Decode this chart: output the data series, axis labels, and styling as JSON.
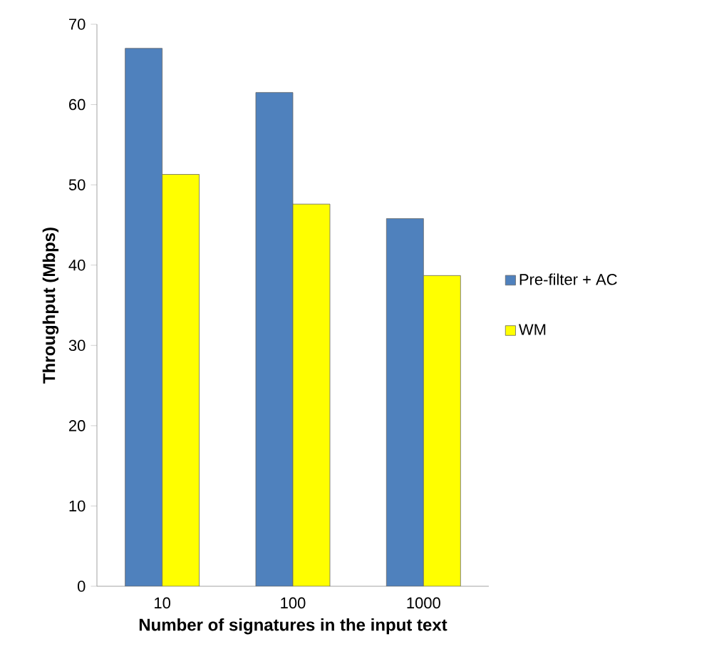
{
  "chart_data": {
    "type": "bar",
    "xlabel": "Number of signatures in the input text",
    "ylabel": "Throughput (Mbps)",
    "categories": [
      "10",
      "100",
      "1000"
    ],
    "series": [
      {
        "name": "Pre-filter + AC",
        "color": "#4f81bd",
        "values": [
          67,
          61.5,
          45.8
        ]
      },
      {
        "name": "WM",
        "color": "#ffff00",
        "values": [
          51.3,
          47.6,
          38.7
        ]
      }
    ],
    "ylim": [
      0,
      70
    ],
    "yticks": [
      0,
      10,
      20,
      30,
      40,
      50,
      60,
      70
    ],
    "legend": "right"
  }
}
